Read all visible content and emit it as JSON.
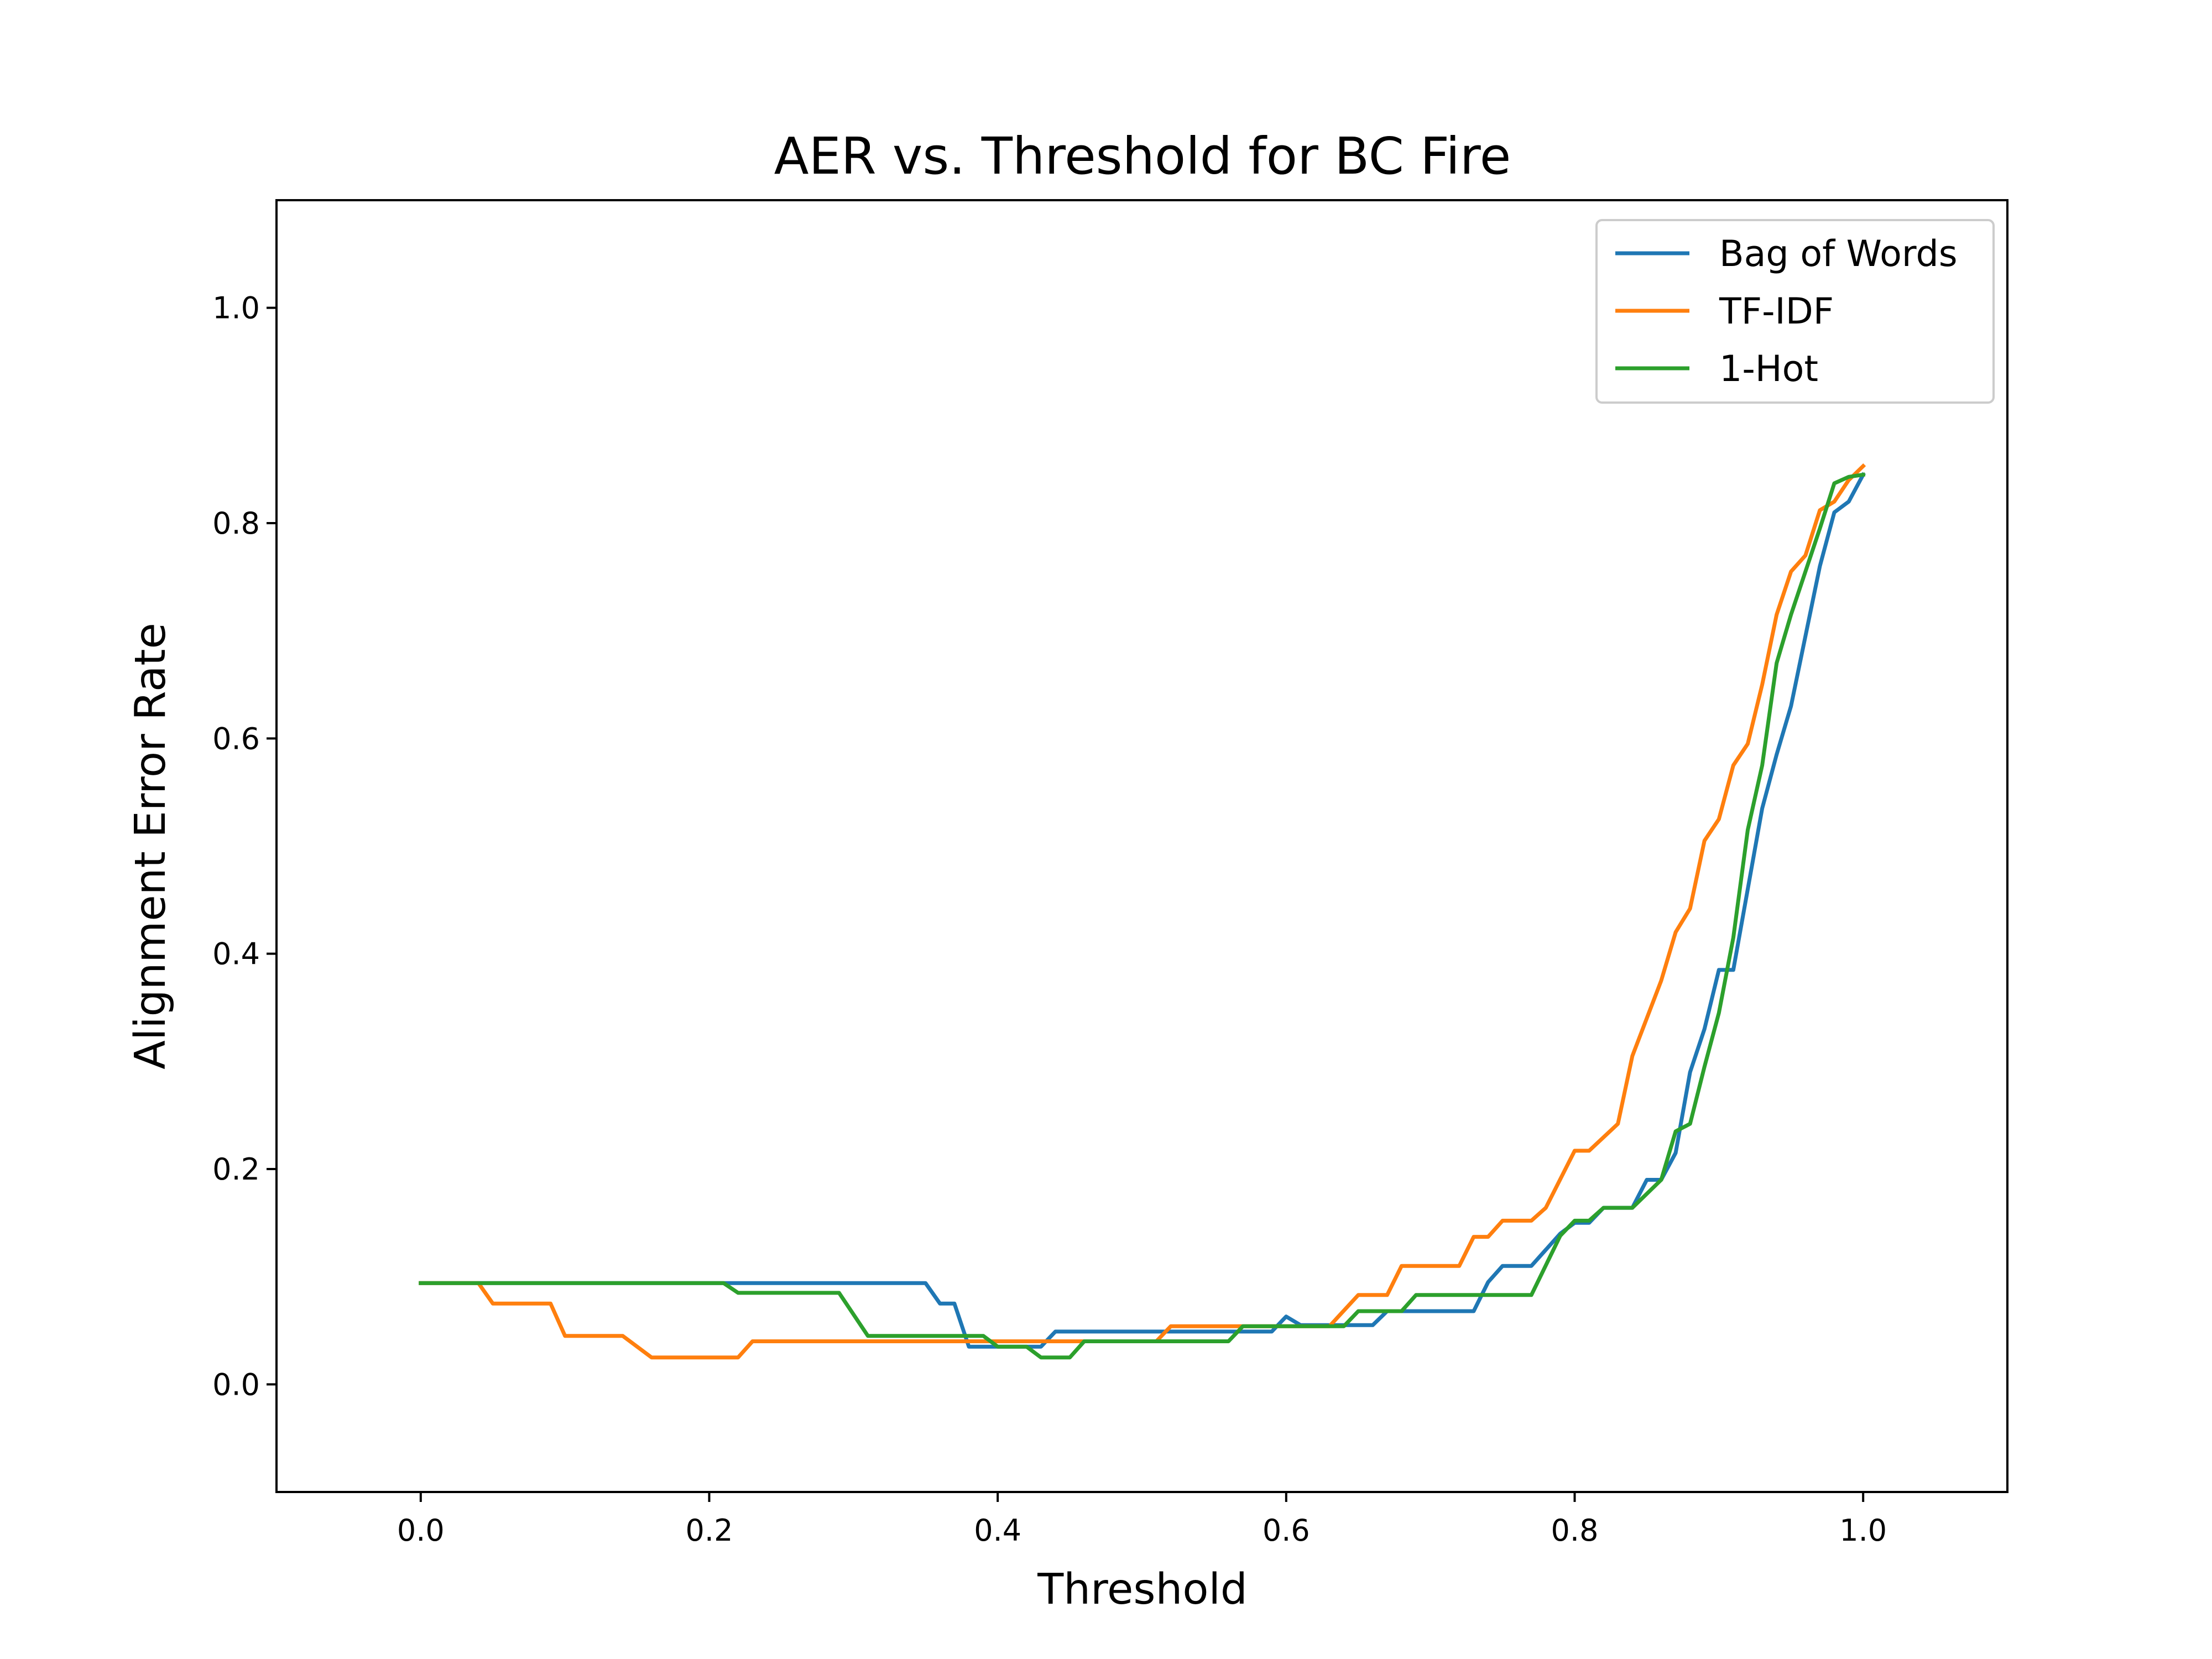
{
  "chart_data": {
    "type": "line",
    "title": "AER vs. Threshold for BC Fire",
    "xlabel": "Threshold",
    "ylabel": "Alignment Error Rate",
    "xlim": [
      -0.1,
      1.1
    ],
    "ylim": [
      -0.1,
      1.1
    ],
    "xticks": [
      "0.0",
      "0.2",
      "0.4",
      "0.6",
      "0.8",
      "1.0"
    ],
    "yticks": [
      "0.0",
      "0.2",
      "0.4",
      "0.6",
      "0.8",
      "1.0"
    ],
    "grid": false,
    "legend_position": "upper right",
    "series": [
      {
        "name": "Bag of Words",
        "color": "#1f77b4",
        "points": [
          [
            0.0,
            0.094
          ],
          [
            0.35,
            0.094
          ],
          [
            0.36,
            0.075
          ],
          [
            0.37,
            0.075
          ],
          [
            0.38,
            0.035
          ],
          [
            0.43,
            0.035
          ],
          [
            0.44,
            0.049
          ],
          [
            0.52,
            0.049
          ],
          [
            0.56,
            0.049
          ],
          [
            0.59,
            0.049
          ],
          [
            0.6,
            0.063
          ],
          [
            0.61,
            0.055
          ],
          [
            0.66,
            0.055
          ],
          [
            0.67,
            0.068
          ],
          [
            0.73,
            0.068
          ],
          [
            0.74,
            0.095
          ],
          [
            0.75,
            0.11
          ],
          [
            0.77,
            0.11
          ],
          [
            0.78,
            0.125
          ],
          [
            0.79,
            0.14
          ],
          [
            0.8,
            0.15
          ],
          [
            0.81,
            0.15
          ],
          [
            0.82,
            0.164
          ],
          [
            0.84,
            0.164
          ],
          [
            0.85,
            0.19
          ],
          [
            0.86,
            0.19
          ],
          [
            0.87,
            0.215
          ],
          [
            0.88,
            0.29
          ],
          [
            0.89,
            0.33
          ],
          [
            0.9,
            0.385
          ],
          [
            0.91,
            0.385
          ],
          [
            0.92,
            0.46
          ],
          [
            0.93,
            0.535
          ],
          [
            0.94,
            0.585
          ],
          [
            0.95,
            0.63
          ],
          [
            0.96,
            0.695
          ],
          [
            0.97,
            0.76
          ],
          [
            0.98,
            0.81
          ],
          [
            0.99,
            0.82
          ],
          [
            1.0,
            0.845
          ]
        ]
      },
      {
        "name": "TF-IDF",
        "color": "#ff7f0e",
        "points": [
          [
            0.0,
            0.094
          ],
          [
            0.04,
            0.094
          ],
          [
            0.05,
            0.075
          ],
          [
            0.09,
            0.075
          ],
          [
            0.1,
            0.045
          ],
          [
            0.14,
            0.045
          ],
          [
            0.16,
            0.025
          ],
          [
            0.22,
            0.025
          ],
          [
            0.23,
            0.04
          ],
          [
            0.51,
            0.04
          ],
          [
            0.52,
            0.054
          ],
          [
            0.62,
            0.054
          ],
          [
            0.63,
            0.054
          ],
          [
            0.65,
            0.083
          ],
          [
            0.67,
            0.083
          ],
          [
            0.68,
            0.11
          ],
          [
            0.72,
            0.11
          ],
          [
            0.73,
            0.137
          ],
          [
            0.74,
            0.137
          ],
          [
            0.75,
            0.152
          ],
          [
            0.77,
            0.152
          ],
          [
            0.78,
            0.164
          ],
          [
            0.8,
            0.217
          ],
          [
            0.81,
            0.217
          ],
          [
            0.83,
            0.242
          ],
          [
            0.84,
            0.305
          ],
          [
            0.86,
            0.375
          ],
          [
            0.87,
            0.42
          ],
          [
            0.88,
            0.442
          ],
          [
            0.89,
            0.505
          ],
          [
            0.9,
            0.525
          ],
          [
            0.91,
            0.575
          ],
          [
            0.92,
            0.595
          ],
          [
            0.93,
            0.65
          ],
          [
            0.94,
            0.715
          ],
          [
            0.95,
            0.755
          ],
          [
            0.96,
            0.77
          ],
          [
            0.97,
            0.812
          ],
          [
            0.98,
            0.82
          ],
          [
            0.99,
            0.84
          ],
          [
            1.0,
            0.853
          ]
        ]
      },
      {
        "name": "1-Hot",
        "color": "#2ca02c",
        "points": [
          [
            0.0,
            0.094
          ],
          [
            0.21,
            0.094
          ],
          [
            0.22,
            0.085
          ],
          [
            0.29,
            0.085
          ],
          [
            0.31,
            0.045
          ],
          [
            0.39,
            0.045
          ],
          [
            0.4,
            0.035
          ],
          [
            0.42,
            0.035
          ],
          [
            0.43,
            0.025
          ],
          [
            0.45,
            0.025
          ],
          [
            0.46,
            0.04
          ],
          [
            0.56,
            0.04
          ],
          [
            0.57,
            0.054
          ],
          [
            0.64,
            0.054
          ],
          [
            0.65,
            0.068
          ],
          [
            0.68,
            0.068
          ],
          [
            0.69,
            0.083
          ],
          [
            0.77,
            0.083
          ],
          [
            0.79,
            0.138
          ],
          [
            0.8,
            0.152
          ],
          [
            0.81,
            0.152
          ],
          [
            0.82,
            0.164
          ],
          [
            0.84,
            0.164
          ],
          [
            0.86,
            0.19
          ],
          [
            0.87,
            0.235
          ],
          [
            0.88,
            0.242
          ],
          [
            0.89,
            0.295
          ],
          [
            0.9,
            0.345
          ],
          [
            0.91,
            0.415
          ],
          [
            0.92,
            0.515
          ],
          [
            0.93,
            0.575
          ],
          [
            0.94,
            0.67
          ],
          [
            0.95,
            0.715
          ],
          [
            0.96,
            0.755
          ],
          [
            0.97,
            0.795
          ],
          [
            0.98,
            0.837
          ],
          [
            0.99,
            0.843
          ],
          [
            1.0,
            0.845
          ]
        ]
      }
    ]
  }
}
